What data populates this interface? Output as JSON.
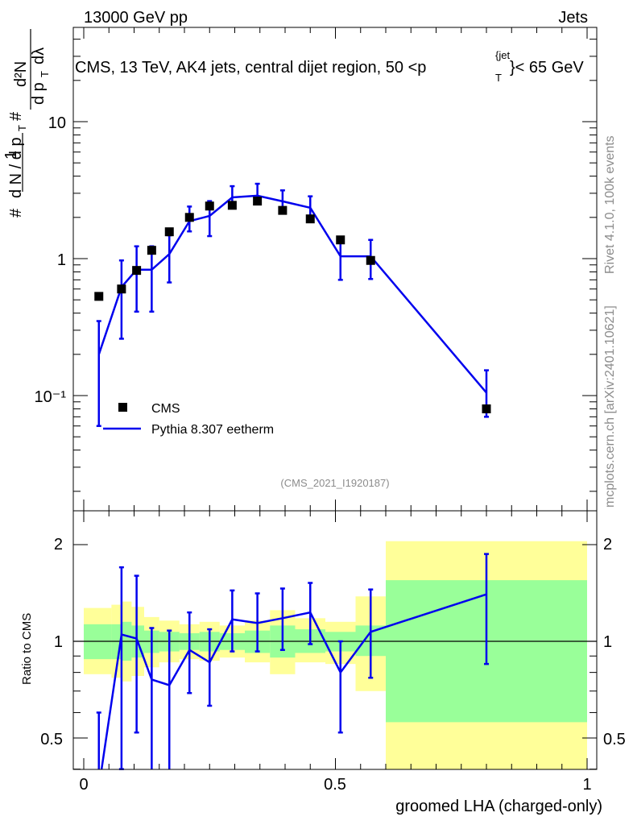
{
  "header": {
    "left": "13000 GeV pp",
    "right": "Jets"
  },
  "side_labels": {
    "rivet": "Rivet 4.1.0,  100k events",
    "mcplots": "mcplots.cern.ch [arXiv:2401.10621]"
  },
  "chart_data": [
    {
      "type": "line",
      "title": "CMS, 13 TeV, AK4 jets, central dijet region, 50 <p",
      "title_sub": "T",
      "title_sup": "{jet",
      "title_end": "}< 65 GeV",
      "ylabel": "# 1/dN/dpT # d²N/dpT dλ",
      "xlabel": "",
      "xlim": [
        -0.02,
        1.02
      ],
      "ylim": [
        0.015,
        30
      ],
      "yscale": "log",
      "y_ticks": [
        "10⁻¹",
        "1",
        "10"
      ],
      "watermark": "(CMS_2021_I1920187)",
      "legend": [
        "CMS",
        "Pythia 8.307 eetherm"
      ],
      "series": [
        {
          "name": "CMS",
          "style": "markers",
          "x": [
            0.03,
            0.075,
            0.105,
            0.135,
            0.17,
            0.21,
            0.25,
            0.295,
            0.345,
            0.395,
            0.45,
            0.51,
            0.57,
            0.8
          ],
          "y": [
            0.53,
            0.6,
            0.82,
            1.15,
            1.57,
            2.0,
            2.42,
            2.45,
            2.63,
            2.25,
            1.95,
            1.37,
            0.97,
            0.08
          ]
        },
        {
          "name": "Pythia 8.307 eetherm",
          "style": "line",
          "x": [
            0.03,
            0.075,
            0.105,
            0.135,
            0.17,
            0.21,
            0.25,
            0.295,
            0.345,
            0.395,
            0.45,
            0.51,
            0.57,
            0.8
          ],
          "y": [
            0.2,
            0.62,
            0.83,
            0.83,
            1.08,
            1.88,
            2.05,
            2.8,
            2.88,
            2.62,
            2.35,
            1.04,
            1.04,
            0.105
          ],
          "err_low": [
            0.06,
            0.26,
            0.41,
            0.41,
            0.67,
            1.58,
            1.46,
            2.35,
            2.5,
            2.18,
            1.95,
            0.7,
            0.71,
            0.07
          ],
          "err_high": [
            0.35,
            0.97,
            1.23,
            1.23,
            1.48,
            2.4,
            2.63,
            3.38,
            3.52,
            3.15,
            2.85,
            1.38,
            1.37,
            0.153
          ]
        }
      ]
    },
    {
      "type": "line",
      "xlabel": "groomed LHA (charged-only)",
      "ylabel": "Ratio to CMS",
      "xlim": [
        -0.02,
        1.02
      ],
      "ylim": [
        0.4,
        2.3
      ],
      "yscale": "log",
      "x_ticks": [
        "0",
        "0.5",
        "1"
      ],
      "y_ticks": [
        "0.5",
        "1",
        "2"
      ],
      "bands": [
        {
          "x0": 0.0,
          "x1": 0.055,
          "y_low": 0.88,
          "y_high": 1.13,
          "y_low_outer": 0.79,
          "y_high_outer": 1.27
        },
        {
          "x0": 0.055,
          "x1": 0.075,
          "y_low": 0.88,
          "y_high": 1.13,
          "y_low_outer": 0.77,
          "y_high_outer": 1.3
        },
        {
          "x0": 0.075,
          "x1": 0.095,
          "y_low": 0.87,
          "y_high": 1.15,
          "y_low_outer": 0.75,
          "y_high_outer": 1.33
        },
        {
          "x0": 0.095,
          "x1": 0.12,
          "y_low": 0.89,
          "y_high": 1.12,
          "y_low_outer": 0.78,
          "y_high_outer": 1.28
        },
        {
          "x0": 0.12,
          "x1": 0.15,
          "y_low": 0.92,
          "y_high": 1.08,
          "y_low_outer": 0.83,
          "y_high_outer": 1.19
        },
        {
          "x0": 0.15,
          "x1": 0.19,
          "y_low": 0.93,
          "y_high": 1.07,
          "y_low_outer": 0.86,
          "y_high_outer": 1.16
        },
        {
          "x0": 0.19,
          "x1": 0.23,
          "y_low": 0.94,
          "y_high": 1.06,
          "y_low_outer": 0.88,
          "y_high_outer": 1.13
        },
        {
          "x0": 0.23,
          "x1": 0.27,
          "y_low": 0.93,
          "y_high": 1.07,
          "y_low_outer": 0.87,
          "y_high_outer": 1.15
        },
        {
          "x0": 0.27,
          "x1": 0.32,
          "y_low": 0.94,
          "y_high": 1.06,
          "y_low_outer": 0.89,
          "y_high_outer": 1.12
        },
        {
          "x0": 0.32,
          "x1": 0.37,
          "y_low": 0.92,
          "y_high": 1.08,
          "y_low_outer": 0.86,
          "y_high_outer": 1.16
        },
        {
          "x0": 0.37,
          "x1": 0.42,
          "y_low": 0.89,
          "y_high": 1.12,
          "y_low_outer": 0.79,
          "y_high_outer": 1.25
        },
        {
          "x0": 0.42,
          "x1": 0.48,
          "y_low": 0.92,
          "y_high": 1.09,
          "y_low_outer": 0.86,
          "y_high_outer": 1.18
        },
        {
          "x0": 0.48,
          "x1": 0.54,
          "y_low": 0.93,
          "y_high": 1.07,
          "y_low_outer": 0.85,
          "y_high_outer": 1.15
        },
        {
          "x0": 0.54,
          "x1": 0.6,
          "y_low": 0.9,
          "y_high": 1.12,
          "y_low_outer": 0.7,
          "y_high_outer": 1.38
        },
        {
          "x0": 0.6,
          "x1": 1.0,
          "y_low": 0.56,
          "y_high": 1.55,
          "y_low_outer": 0.33,
          "y_high_outer": 2.05
        }
      ],
      "series": [
        {
          "name": "Pythia 8.307 eetherm / CMS",
          "x": [
            0.03,
            0.075,
            0.105,
            0.135,
            0.17,
            0.21,
            0.25,
            0.295,
            0.345,
            0.395,
            0.45,
            0.51,
            0.57,
            0.8
          ],
          "y": [
            0.35,
            1.05,
            1.02,
            0.76,
            0.73,
            0.94,
            0.86,
            1.17,
            1.14,
            1.18,
            1.23,
            0.8,
            1.07,
            1.4
          ],
          "err_low": [
            0.2,
            0.4,
            0.52,
            0.36,
            0.39,
            0.69,
            0.63,
            0.93,
            0.93,
            0.94,
            0.98,
            0.52,
            0.77,
            0.85
          ],
          "err_high": [
            0.6,
            1.7,
            1.6,
            1.1,
            1.08,
            1.23,
            1.09,
            1.44,
            1.41,
            1.46,
            1.52,
            1.0,
            1.45,
            1.87
          ]
        }
      ]
    }
  ]
}
